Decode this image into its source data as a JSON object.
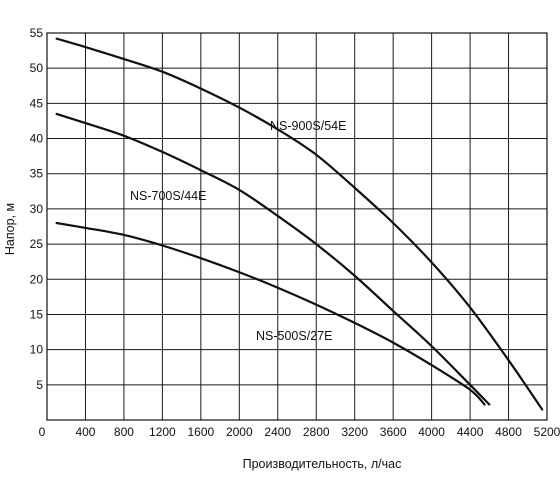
{
  "chart_data": {
    "type": "line",
    "xlabel": "Производительность, л/час",
    "ylabel": "Напор, м",
    "xlim": [
      0,
      5200
    ],
    "ylim": [
      0,
      55
    ],
    "grid": true,
    "x_ticks": [
      "0",
      "400",
      "800",
      "1200",
      "1600",
      "2000",
      "2400",
      "2800",
      "3200",
      "3600",
      "4000",
      "4400",
      "4800",
      "5200"
    ],
    "y_ticks": [
      "5",
      "10",
      "15",
      "20",
      "25",
      "30",
      "35",
      "40",
      "45",
      "50",
      "55"
    ],
    "series": [
      {
        "name": "NS-900S/54E",
        "color": "#111111",
        "points": [
          [
            100,
            54.2
          ],
          [
            400,
            53.0
          ],
          [
            800,
            51.3
          ],
          [
            1200,
            49.5
          ],
          [
            1600,
            47.1
          ],
          [
            2000,
            44.4
          ],
          [
            2400,
            41.3
          ],
          [
            2800,
            37.7
          ],
          [
            3200,
            33.0
          ],
          [
            3600,
            28.0
          ],
          [
            4000,
            22.4
          ],
          [
            4400,
            16.0
          ],
          [
            4800,
            8.5
          ],
          [
            5150,
            1.5
          ]
        ]
      },
      {
        "name": "NS-700S/44E",
        "color": "#111111",
        "points": [
          [
            100,
            43.5
          ],
          [
            400,
            42.2
          ],
          [
            800,
            40.4
          ],
          [
            1200,
            38.1
          ],
          [
            1600,
            35.5
          ],
          [
            2000,
            32.7
          ],
          [
            2400,
            29.0
          ],
          [
            2800,
            25.0
          ],
          [
            3200,
            20.5
          ],
          [
            3600,
            15.5
          ],
          [
            4000,
            10.5
          ],
          [
            4400,
            5.0
          ],
          [
            4600,
            2.2
          ]
        ]
      },
      {
        "name": "NS-500S/27E",
        "color": "#111111",
        "points": [
          [
            100,
            28.0
          ],
          [
            400,
            27.3
          ],
          [
            800,
            26.3
          ],
          [
            1200,
            24.8
          ],
          [
            1600,
            23.0
          ],
          [
            2000,
            21.0
          ],
          [
            2400,
            18.8
          ],
          [
            2800,
            16.4
          ],
          [
            3200,
            13.8
          ],
          [
            3600,
            11.0
          ],
          [
            4000,
            7.8
          ],
          [
            4400,
            4.3
          ],
          [
            4550,
            2.2
          ]
        ]
      }
    ]
  }
}
